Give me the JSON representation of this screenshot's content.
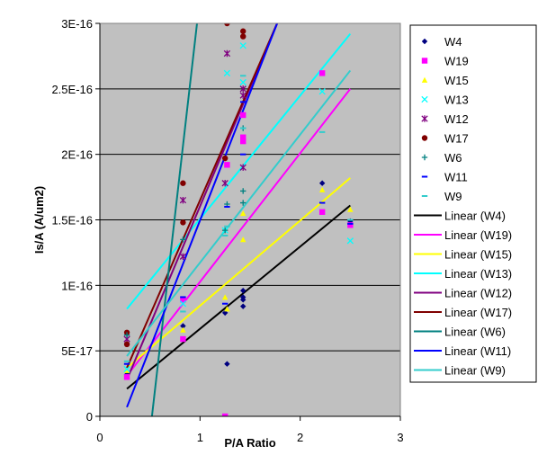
{
  "chart_data": {
    "type": "scatter",
    "xlabel": "P/A Ratio",
    "ylabel": "Is/A (A/um2)",
    "xlim": [
      0,
      3
    ],
    "ylim": [
      0,
      3e-16
    ],
    "x_ticks": [
      0,
      1,
      2,
      3
    ],
    "y_ticks": [
      0,
      5e-17,
      1e-16,
      1.5e-16,
      2e-16,
      2.5e-16,
      3e-16
    ],
    "x_tick_labels": [
      "0",
      "1",
      "2",
      "3"
    ],
    "y_tick_labels": [
      "0",
      "5E-17",
      "1E-16",
      "1.5E-16",
      "2E-16",
      "2.5E-16",
      "3E-16"
    ],
    "grid": "horizontal",
    "plot_background": "#c0c0c0",
    "legend_position": "right",
    "series": [
      {
        "name": "W4",
        "marker": "diamond",
        "color": "#000080",
        "points": [
          [
            0.27,
            3.2e-17
          ],
          [
            0.83,
            6.9e-17
          ],
          [
            1.25,
            7.9e-17
          ],
          [
            1.27,
            4e-17
          ],
          [
            1.43,
            8.4e-17
          ],
          [
            1.43,
            8.9e-17
          ],
          [
            1.43,
            9.1e-17
          ],
          [
            1.43,
            9.6e-17
          ],
          [
            2.22,
            1.78e-16
          ],
          [
            2.5,
            1.49e-16
          ]
        ]
      },
      {
        "name": "W19",
        "marker": "square",
        "color": "#ff00ff",
        "points": [
          [
            0.27,
            3e-17
          ],
          [
            0.83,
            5.9e-17
          ],
          [
            0.83,
            8.9e-17
          ],
          [
            1.25,
            0.0
          ],
          [
            1.27,
            1.92e-16
          ],
          [
            1.43,
            2.1e-16
          ],
          [
            1.43,
            2.13e-16
          ],
          [
            1.43,
            2.3e-16
          ],
          [
            2.22,
            1.56e-16
          ],
          [
            2.22,
            2.62e-16
          ],
          [
            2.5,
            1.46e-16
          ]
        ]
      },
      {
        "name": "W15",
        "marker": "triangle",
        "color": "#ffff00",
        "points": [
          [
            0.27,
            3.5e-17
          ],
          [
            0.83,
            6.6e-17
          ],
          [
            1.25,
            9.1e-17
          ],
          [
            1.27,
            8.2e-17
          ],
          [
            1.43,
            1.35e-16
          ],
          [
            1.43,
            1.55e-16
          ],
          [
            2.22,
            1.73e-16
          ],
          [
            2.5,
            1.58e-16
          ]
        ]
      },
      {
        "name": "W13",
        "marker": "x",
        "color": "#00ffff",
        "points": [
          [
            0.27,
            3.6e-17
          ],
          [
            0.83,
            8.6e-17
          ],
          [
            1.25,
            1.42e-16
          ],
          [
            1.27,
            2.62e-16
          ],
          [
            1.43,
            2.55e-16
          ],
          [
            1.43,
            2.83e-16
          ],
          [
            2.22,
            2.48e-16
          ],
          [
            2.5,
            1.34e-16
          ]
        ]
      },
      {
        "name": "W12",
        "marker": "star",
        "color": "#800080",
        "points": [
          [
            0.27,
            5.9e-17
          ],
          [
            0.83,
            1.22e-16
          ],
          [
            0.83,
            1.65e-16
          ],
          [
            1.25,
            1.78e-16
          ],
          [
            1.27,
            2.77e-16
          ],
          [
            1.43,
            1.9e-16
          ],
          [
            1.43,
            2.45e-16
          ],
          [
            1.43,
            2.5e-16
          ]
        ]
      },
      {
        "name": "W17",
        "marker": "circle",
        "color": "#800000",
        "points": [
          [
            0.27,
            5.5e-17
          ],
          [
            0.27,
            6.4e-17
          ],
          [
            0.83,
            1.48e-16
          ],
          [
            0.83,
            1.78e-16
          ],
          [
            1.25,
            1.97e-16
          ],
          [
            1.27,
            3e-16
          ],
          [
            1.43,
            2.9e-16
          ],
          [
            1.43,
            2.94e-16
          ]
        ]
      },
      {
        "name": "W6",
        "marker": "plus",
        "color": "#008080",
        "points": [
          [
            0.27,
            6.2e-17
          ],
          [
            0.83,
            1.35e-16
          ],
          [
            1.25,
            1.42e-16
          ],
          [
            1.27,
            1.62e-16
          ],
          [
            1.43,
            1.63e-16
          ],
          [
            1.43,
            1.72e-16
          ],
          [
            1.43,
            2.2e-16
          ]
        ]
      },
      {
        "name": "W11",
        "marker": "dash",
        "color": "#0000ff",
        "points": [
          [
            0.27,
            4e-17
          ],
          [
            0.83,
            9.1e-17
          ],
          [
            1.25,
            8.6e-17
          ],
          [
            1.27,
            1.6e-16
          ],
          [
            1.43,
            2e-16
          ],
          [
            1.43,
            2.4e-16
          ],
          [
            2.22,
            1.63e-16
          ],
          [
            2.5,
            1.47e-16
          ]
        ]
      },
      {
        "name": "W9",
        "marker": "dash",
        "color": "#33cccc",
        "points": [
          [
            0.27,
            4.2e-17
          ],
          [
            0.83,
            8e-17
          ],
          [
            1.25,
            1.38e-16
          ],
          [
            1.27,
            1.45e-16
          ],
          [
            1.43,
            2.6e-16
          ],
          [
            1.43,
            2.2e-16
          ],
          [
            2.22,
            2.17e-16
          ],
          [
            2.5,
            1.5e-16
          ]
        ]
      }
    ],
    "trendlines": [
      {
        "name": "Linear (W4)",
        "color": "#000000",
        "x": [
          0.27,
          2.5
        ],
        "y": [
          2.1e-17,
          1.61e-16
        ]
      },
      {
        "name": "Linear (W19)",
        "color": "#ff00ff",
        "x": [
          0.27,
          2.5
        ],
        "y": [
          3.1e-17,
          2.5e-16
        ]
      },
      {
        "name": "Linear (W15)",
        "color": "#ffff00",
        "x": [
          0.27,
          2.5
        ],
        "y": [
          3.7e-17,
          1.82e-16
        ]
      },
      {
        "name": "Linear (W13)",
        "color": "#00ffff",
        "x": [
          0.27,
          2.5
        ],
        "y": [
          8.2e-17,
          2.92e-16
        ]
      },
      {
        "name": "Linear (W12)",
        "color": "#800080",
        "x": [
          0.27,
          1.77
        ],
        "y": [
          2.8e-17,
          3e-16
        ]
      },
      {
        "name": "Linear (W17)",
        "color": "#800000",
        "x": [
          0.27,
          1.77
        ],
        "y": [
          3.7e-17,
          3e-16
        ]
      },
      {
        "name": "Linear (W6)",
        "color": "#008080",
        "x": [
          0.52,
          0.97
        ],
        "y": [
          0.0,
          3e-16
        ]
      },
      {
        "name": "Linear (W11)",
        "color": "#0000ff",
        "x": [
          0.27,
          1.77
        ],
        "y": [
          7e-18,
          3e-16
        ]
      },
      {
        "name": "Linear (W9)",
        "color": "#33cccc",
        "x": [
          0.27,
          2.5
        ],
        "y": [
          4.6e-17,
          2.64e-16
        ]
      }
    ]
  }
}
